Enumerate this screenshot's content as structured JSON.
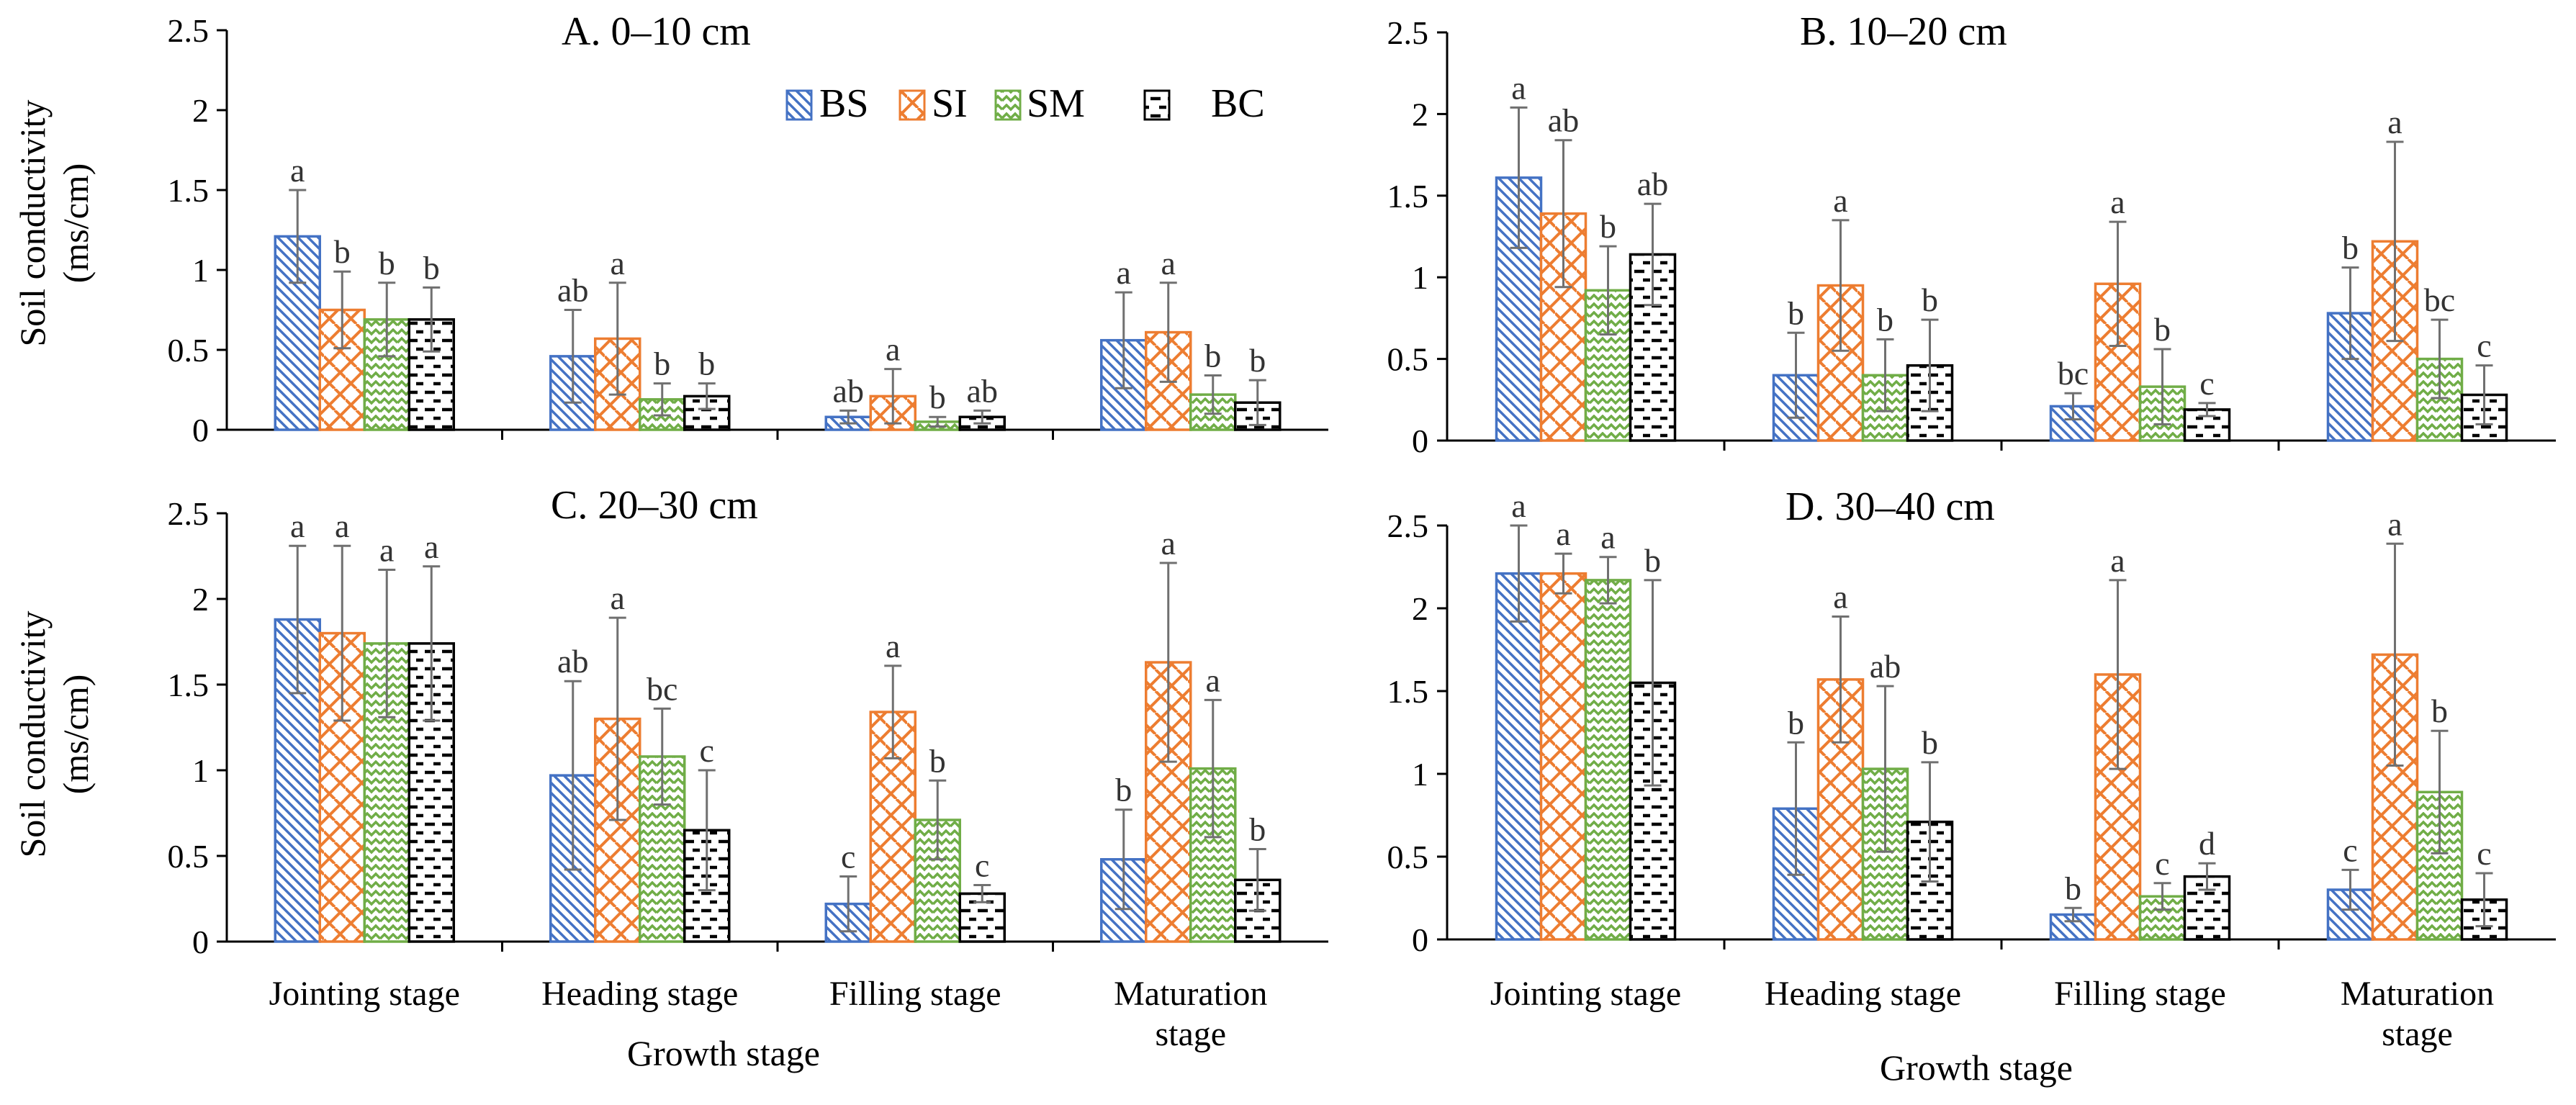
{
  "figure": {
    "y_axis_label_line1": "Soil conductivity",
    "y_axis_label_line2": "(ms/cm)",
    "x_axis_label": "Growth stage"
  },
  "legend": [
    {
      "key": "BS",
      "label": "BS"
    },
    {
      "key": "SI",
      "label": "SI"
    },
    {
      "key": "SM",
      "label": "SM"
    },
    {
      "key": "BC",
      "label": "BC"
    }
  ],
  "series_colors": {
    "BS": "#4472c4",
    "SI": "#ed7d31",
    "SM": "#70ad47",
    "BC": "#000000"
  },
  "chart_data": [
    {
      "type": "bar",
      "title": "A. 0–10 cm",
      "ylabel": "Soil conductivity (ms/cm)",
      "xlabel": "Growth stage",
      "ylim": [
        0,
        2.5
      ],
      "yticks": [
        "0",
        "0.5",
        "1",
        "1.5",
        "2",
        "2.5"
      ],
      "categories": [
        "Jointing stage",
        "Heading stage",
        "Filling stage",
        "Maturation stage"
      ],
      "series": [
        {
          "name": "BS",
          "values": [
            1.21,
            0.46,
            0.08,
            0.56
          ],
          "errors": [
            0.29,
            0.29,
            0.04,
            0.3
          ],
          "labels": [
            "a",
            "ab",
            "ab",
            "a"
          ]
        },
        {
          "name": "SI",
          "values": [
            0.75,
            0.57,
            0.21,
            0.61
          ],
          "errors": [
            0.24,
            0.35,
            0.17,
            0.31
          ],
          "labels": [
            "b",
            "a",
            "a",
            "a"
          ]
        },
        {
          "name": "SM",
          "values": [
            0.69,
            0.19,
            0.05,
            0.22
          ],
          "errors": [
            0.23,
            0.1,
            0.03,
            0.12
          ],
          "labels": [
            "b",
            "b",
            "b",
            "b"
          ]
        },
        {
          "name": "BC",
          "values": [
            0.69,
            0.21,
            0.08,
            0.17
          ],
          "errors": [
            0.2,
            0.08,
            0.04,
            0.14
          ],
          "labels": [
            "b",
            "b",
            "ab",
            "b"
          ]
        }
      ]
    },
    {
      "type": "bar",
      "title": "B. 10–20 cm",
      "ylabel": "",
      "xlabel": "Growth stage",
      "ylim": [
        0,
        2.5
      ],
      "yticks": [
        "0",
        "0.5",
        "1",
        "1.5",
        "2",
        "2.5"
      ],
      "categories": [
        "Jointing stage",
        "Heading stage",
        "Filling stage",
        "Maturation stage"
      ],
      "series": [
        {
          "name": "BS",
          "values": [
            1.61,
            0.4,
            0.21,
            0.78
          ],
          "errors": [
            0.43,
            0.26,
            0.08,
            0.28
          ],
          "labels": [
            "a",
            "b",
            "bc",
            "b"
          ]
        },
        {
          "name": "SI",
          "values": [
            1.39,
            0.95,
            0.96,
            1.22
          ],
          "errors": [
            0.45,
            0.4,
            0.38,
            0.61
          ],
          "labels": [
            "ab",
            "a",
            "a",
            "a"
          ]
        },
        {
          "name": "SM",
          "values": [
            0.92,
            0.4,
            0.33,
            0.5
          ],
          "errors": [
            0.27,
            0.22,
            0.23,
            0.24
          ],
          "labels": [
            "b",
            "b",
            "b",
            "bc"
          ]
        },
        {
          "name": "BC",
          "values": [
            1.14,
            0.46,
            0.19,
            0.28
          ],
          "errors": [
            0.31,
            0.28,
            0.04,
            0.18
          ],
          "labels": [
            "ab",
            "b",
            "c",
            "c"
          ]
        }
      ]
    },
    {
      "type": "bar",
      "title": "C. 20–30 cm",
      "ylabel": "Soil conductivity (ms/cm)",
      "xlabel": "Growth stage",
      "ylim": [
        0,
        2.5
      ],
      "yticks": [
        "0",
        "0.5",
        "1",
        "1.5",
        "2",
        "2.5"
      ],
      "categories": [
        "Jointing stage",
        "Heading stage",
        "Filling stage",
        "Maturation stage"
      ],
      "series": [
        {
          "name": "BS",
          "values": [
            1.88,
            0.97,
            0.22,
            0.48
          ],
          "errors": [
            0.43,
            0.55,
            0.16,
            0.29
          ],
          "labels": [
            "a",
            "ab",
            "c",
            "b"
          ]
        },
        {
          "name": "SI",
          "values": [
            1.8,
            1.3,
            1.34,
            1.63
          ],
          "errors": [
            0.51,
            0.59,
            0.27,
            0.58
          ],
          "labels": [
            "a",
            "a",
            "a",
            "a"
          ]
        },
        {
          "name": "SM",
          "values": [
            1.74,
            1.08,
            0.71,
            1.01
          ],
          "errors": [
            0.43,
            0.28,
            0.23,
            0.4
          ],
          "labels": [
            "a",
            "bc",
            "b",
            "a"
          ]
        },
        {
          "name": "BC",
          "values": [
            1.74,
            0.65,
            0.28,
            0.36
          ],
          "errors": [
            0.45,
            0.35,
            0.05,
            0.18
          ],
          "labels": [
            "a",
            "c",
            "c",
            "b"
          ]
        }
      ]
    },
    {
      "type": "bar",
      "title": "D. 30–40 cm",
      "ylabel": "",
      "xlabel": "Growth stage",
      "ylim": [
        0,
        2.5
      ],
      "yticks": [
        "0",
        "0.5",
        "1",
        "1.5",
        "2",
        "2.5"
      ],
      "categories": [
        "Jointing stage",
        "Heading stage",
        "Filling stage",
        "Maturation stage"
      ],
      "series": [
        {
          "name": "BS",
          "values": [
            2.21,
            0.79,
            0.15,
            0.3
          ],
          "errors": [
            0.29,
            0.4,
            0.04,
            0.12
          ],
          "labels": [
            "a",
            "b",
            "b",
            "c"
          ]
        },
        {
          "name": "SI",
          "values": [
            2.21,
            1.57,
            1.6,
            1.72
          ],
          "errors": [
            0.12,
            0.38,
            0.57,
            0.67
          ],
          "labels": [
            "a",
            "a",
            "a",
            "a"
          ]
        },
        {
          "name": "SM",
          "values": [
            2.17,
            1.03,
            0.26,
            0.89
          ],
          "errors": [
            0.14,
            0.5,
            0.08,
            0.37
          ],
          "labels": [
            "a",
            "ab",
            "c",
            "b"
          ]
        },
        {
          "name": "BC",
          "values": [
            1.55,
            0.71,
            0.38,
            0.24
          ],
          "errors": [
            0.62,
            0.36,
            0.08,
            0.16
          ],
          "labels": [
            "b",
            "b",
            "d",
            "c"
          ]
        }
      ]
    }
  ]
}
